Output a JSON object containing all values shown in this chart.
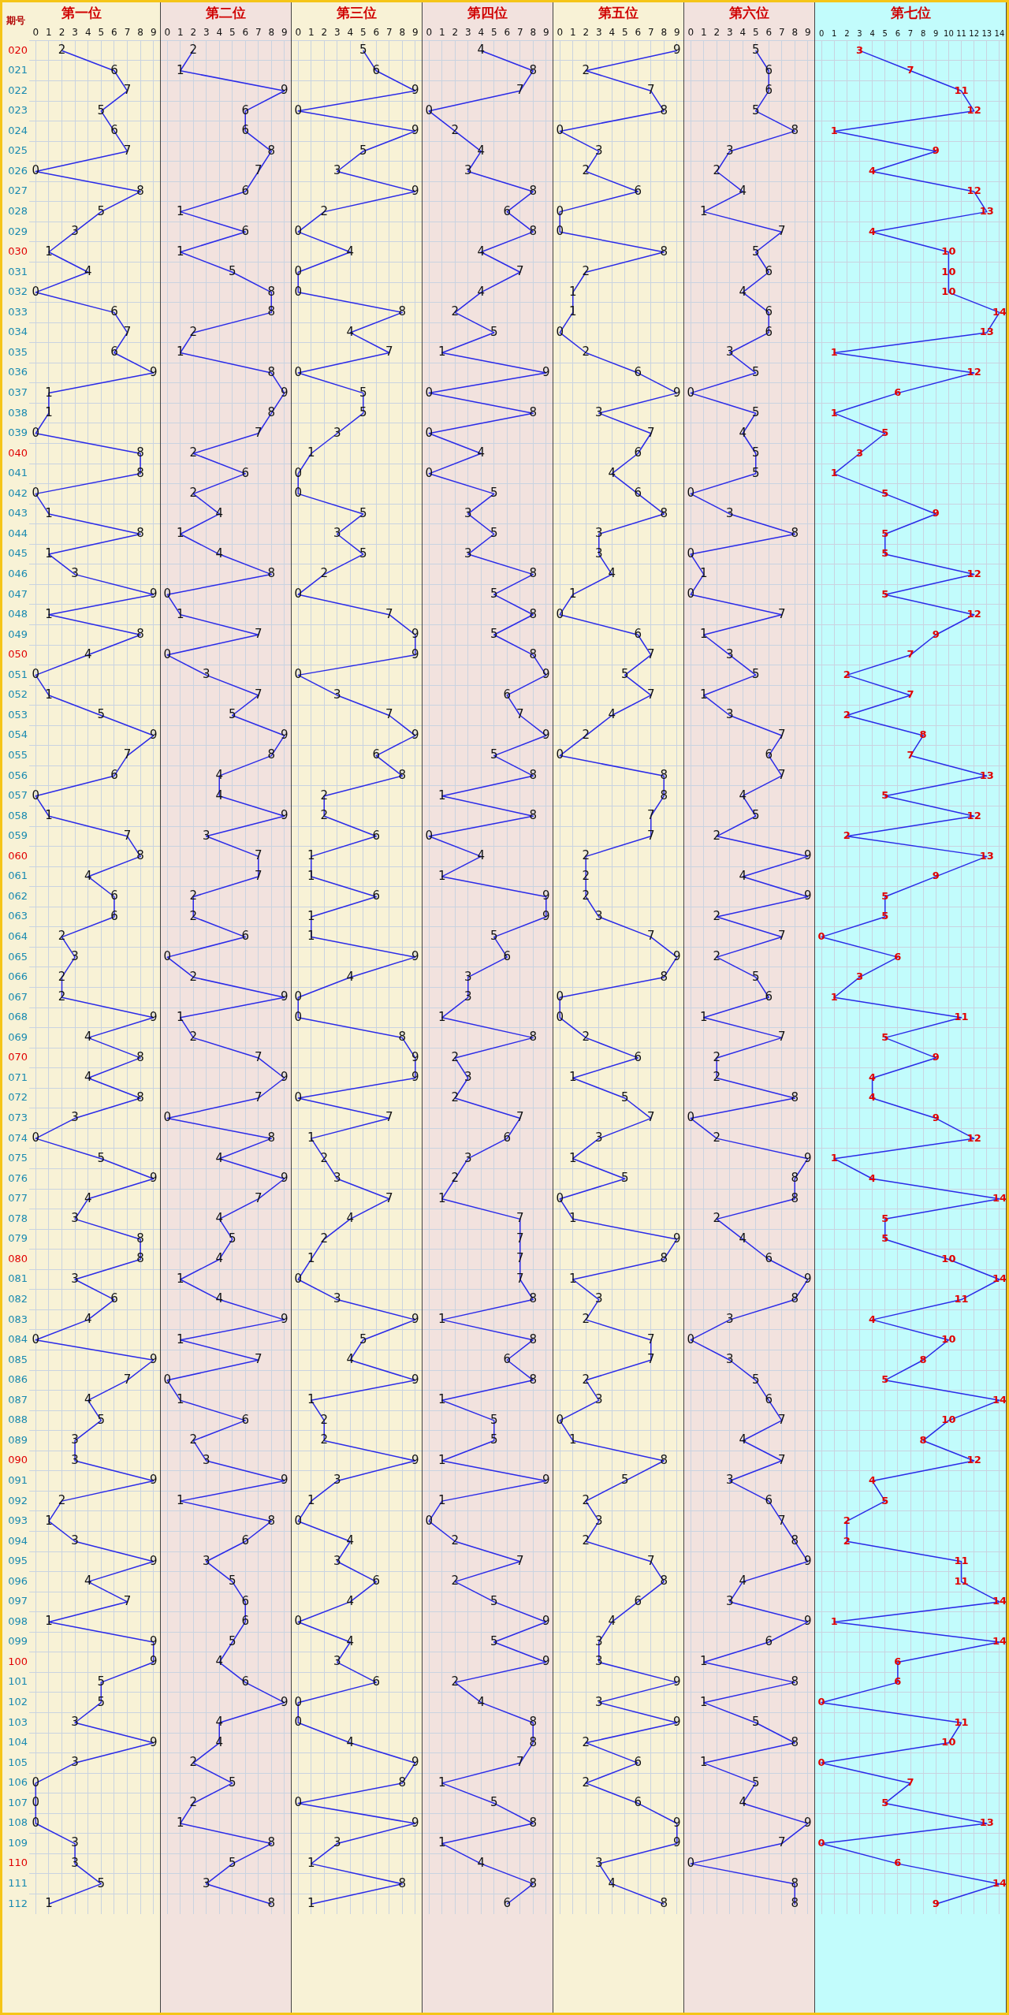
{
  "chart_data": [
    {
      "type": "line",
      "orientation": "horizontal",
      "title": "第一位",
      "ylabel": "期号",
      "categories": [
        "020",
        "021",
        "022",
        "023",
        "024",
        "025",
        "026",
        "027",
        "028",
        "029",
        "030",
        "031",
        "032",
        "033",
        "034",
        "035",
        "036",
        "037",
        "038",
        "039",
        "040",
        "041",
        "042",
        "043",
        "044",
        "045",
        "046",
        "047",
        "048",
        "049",
        "050",
        "051",
        "052",
        "053",
        "054",
        "055",
        "056",
        "057",
        "058",
        "059",
        "060",
        "061",
        "062",
        "063",
        "064",
        "065",
        "066",
        "067",
        "068",
        "069",
        "070",
        "071",
        "072",
        "073",
        "074",
        "075",
        "076",
        "077",
        "078",
        "079",
        "080",
        "081",
        "082",
        "083",
        "084",
        "085",
        "086",
        "087",
        "088",
        "089",
        "090",
        "091",
        "092",
        "093",
        "094",
        "095",
        "096",
        "097",
        "098",
        "099",
        "100",
        "101",
        "102",
        "103",
        "104",
        "105",
        "106",
        "107",
        "108",
        "109",
        "110",
        "111",
        "112"
      ],
      "values": [
        2,
        6,
        7,
        5,
        6,
        7,
        0,
        8,
        5,
        3,
        1,
        4,
        0,
        6,
        7,
        6,
        9,
        1,
        1,
        0,
        8,
        8,
        0,
        1,
        8,
        1,
        3,
        9,
        1,
        8,
        4,
        0,
        1,
        5,
        9,
        7,
        6,
        0,
        1,
        7,
        8,
        4,
        6,
        6,
        2,
        3,
        2,
        2,
        9,
        4,
        8,
        4,
        8,
        3,
        0,
        5,
        9,
        4,
        3,
        8,
        8,
        3,
        6,
        4,
        0,
        9,
        7,
        4,
        5,
        3,
        3,
        9,
        2,
        1,
        3,
        9,
        4,
        7,
        1,
        9,
        9,
        5,
        5,
        3,
        9,
        3,
        0,
        0,
        0,
        3,
        3,
        5,
        1
      ],
      "color": "#2a2ae8",
      "xlim": [
        -0.5,
        9.5
      ],
      "xticks": [
        0,
        1,
        2,
        3,
        4,
        5,
        6,
        7,
        8,
        9
      ],
      "grid": true,
      "data_labels": true,
      "marker": "none",
      "legend": false
    },
    {
      "type": "line",
      "orientation": "horizontal",
      "title": "第二位",
      "categories": [
        "020",
        "021",
        "022",
        "023",
        "024",
        "025",
        "026",
        "027",
        "028",
        "029",
        "030",
        "031",
        "032",
        "033",
        "034",
        "035",
        "036",
        "037",
        "038",
        "039",
        "040",
        "041",
        "042",
        "043",
        "044",
        "045",
        "046",
        "047",
        "048",
        "049",
        "050",
        "051",
        "052",
        "053",
        "054",
        "055",
        "056",
        "057",
        "058",
        "059",
        "060",
        "061",
        "062",
        "063",
        "064",
        "065",
        "066",
        "067",
        "068",
        "069",
        "070",
        "071",
        "072",
        "073",
        "074",
        "075",
        "076",
        "077",
        "078",
        "079",
        "080",
        "081",
        "082",
        "083",
        "084",
        "085",
        "086",
        "087",
        "088",
        "089",
        "090",
        "091",
        "092",
        "093",
        "094",
        "095",
        "096",
        "097",
        "098",
        "099",
        "100",
        "101",
        "102",
        "103",
        "104",
        "105",
        "106",
        "107",
        "108",
        "109",
        "110",
        "111",
        "112"
      ],
      "values": [
        2,
        1,
        9,
        6,
        6,
        8,
        7,
        6,
        1,
        6,
        1,
        5,
        8,
        8,
        2,
        1,
        8,
        9,
        8,
        7,
        2,
        6,
        2,
        4,
        1,
        4,
        8,
        0,
        1,
        7,
        0,
        3,
        7,
        5,
        9,
        8,
        4,
        4,
        9,
        3,
        7,
        7,
        2,
        2,
        6,
        0,
        2,
        9,
        1,
        2,
        7,
        9,
        7,
        0,
        8,
        4,
        9,
        7,
        4,
        5,
        4,
        1,
        4,
        9,
        1,
        7,
        0,
        1,
        6,
        2,
        3,
        9,
        1,
        8,
        6,
        3,
        5,
        6,
        6,
        5,
        4,
        6,
        9,
        4,
        4,
        2,
        5,
        2,
        1,
        8,
        5,
        3,
        8
      ],
      "color": "#2a2ae8",
      "xlim": [
        -0.5,
        9.5
      ],
      "xticks": [
        0,
        1,
        2,
        3,
        4,
        5,
        6,
        7,
        8,
        9
      ],
      "grid": true,
      "data_labels": true,
      "marker": "none",
      "legend": false,
      "tick_labels": "x"
    },
    {
      "type": "line",
      "orientation": "horizontal",
      "title": "第三位",
      "categories": [
        "020",
        "021",
        "022",
        "023",
        "024",
        "025",
        "026",
        "027",
        "028",
        "029",
        "030",
        "031",
        "032",
        "033",
        "034",
        "035",
        "036",
        "037",
        "038",
        "039",
        "040",
        "041",
        "042",
        "043",
        "044",
        "045",
        "046",
        "047",
        "048",
        "049",
        "050",
        "051",
        "052",
        "053",
        "054",
        "055",
        "056",
        "057",
        "058",
        "059",
        "060",
        "061",
        "062",
        "063",
        "064",
        "065",
        "066",
        "067",
        "068",
        "069",
        "070",
        "071",
        "072",
        "073",
        "074",
        "075",
        "076",
        "077",
        "078",
        "079",
        "080",
        "081",
        "082",
        "083",
        "084",
        "085",
        "086",
        "087",
        "088",
        "089",
        "090",
        "091",
        "092",
        "093",
        "094",
        "095",
        "096",
        "097",
        "098",
        "099",
        "100",
        "101",
        "102",
        "103",
        "104",
        "105",
        "106",
        "107",
        "108",
        "109",
        "110",
        "111",
        "112"
      ],
      "values": [
        5,
        6,
        9,
        0,
        9,
        5,
        3,
        9,
        2,
        0,
        4,
        0,
        0,
        8,
        4,
        7,
        0,
        5,
        5,
        3,
        1,
        0,
        0,
        5,
        3,
        5,
        2,
        0,
        7,
        9,
        9,
        0,
        3,
        7,
        9,
        6,
        8,
        2,
        2,
        6,
        1,
        1,
        6,
        1,
        1,
        9,
        4,
        0,
        0,
        8,
        9,
        9,
        0,
        7,
        1,
        2,
        3,
        7,
        4,
        2,
        1,
        0,
        3,
        9,
        5,
        4,
        9,
        1,
        2,
        2,
        9,
        3,
        1,
        0,
        4,
        3,
        6,
        4,
        0,
        4,
        3,
        6,
        0,
        0,
        4,
        9,
        8,
        0,
        9,
        3,
        1,
        8,
        1
      ],
      "color": "#2a2ae8",
      "xlim": [
        -0.5,
        9.5
      ],
      "xticks": [
        0,
        1,
        2,
        3,
        4,
        5,
        6,
        7,
        8,
        9
      ],
      "grid": true,
      "data_labels": true,
      "marker": "none",
      "legend": false,
      "tick_labels": "x"
    },
    {
      "type": "line",
      "orientation": "horizontal",
      "title": "第四位",
      "categories": [
        "020",
        "021",
        "022",
        "023",
        "024",
        "025",
        "026",
        "027",
        "028",
        "029",
        "030",
        "031",
        "032",
        "033",
        "034",
        "035",
        "036",
        "037",
        "038",
        "039",
        "040",
        "041",
        "042",
        "043",
        "044",
        "045",
        "046",
        "047",
        "048",
        "049",
        "050",
        "051",
        "052",
        "053",
        "054",
        "055",
        "056",
        "057",
        "058",
        "059",
        "060",
        "061",
        "062",
        "063",
        "064",
        "065",
        "066",
        "067",
        "068",
        "069",
        "070",
        "071",
        "072",
        "073",
        "074",
        "075",
        "076",
        "077",
        "078",
        "079",
        "080",
        "081",
        "082",
        "083",
        "084",
        "085",
        "086",
        "087",
        "088",
        "089",
        "090",
        "091",
        "092",
        "093",
        "094",
        "095",
        "096",
        "097",
        "098",
        "099",
        "100",
        "101",
        "102",
        "103",
        "104",
        "105",
        "106",
        "107",
        "108",
        "109",
        "110",
        "111",
        "112"
      ],
      "values": [
        4,
        8,
        7,
        0,
        2,
        4,
        3,
        8,
        6,
        8,
        4,
        7,
        4,
        2,
        5,
        1,
        9,
        0,
        8,
        0,
        4,
        0,
        5,
        3,
        5,
        3,
        8,
        5,
        8,
        5,
        8,
        9,
        6,
        7,
        9,
        5,
        8,
        1,
        8,
        0,
        4,
        1,
        9,
        9,
        5,
        6,
        3,
        3,
        1,
        8,
        2,
        3,
        2,
        7,
        6,
        3,
        2,
        1,
        7,
        7,
        7,
        7,
        8,
        1,
        8,
        6,
        8,
        1,
        5,
        5,
        1,
        9,
        1,
        0,
        2,
        7,
        2,
        5,
        9,
        5,
        9,
        2,
        4,
        8,
        8,
        7,
        1,
        5,
        8,
        1,
        4,
        8,
        6
      ],
      "color": "#2a2ae8",
      "xlim": [
        -0.5,
        9.5
      ],
      "xticks": [
        0,
        1,
        2,
        3,
        4,
        5,
        6,
        7,
        8,
        9
      ],
      "grid": true,
      "data_labels": true,
      "marker": "none",
      "legend": false,
      "tick_labels": "x"
    },
    {
      "type": "line",
      "orientation": "horizontal",
      "title": "第五位",
      "categories": [
        "020",
        "021",
        "022",
        "023",
        "024",
        "025",
        "026",
        "027",
        "028",
        "029",
        "030",
        "031",
        "032",
        "033",
        "034",
        "035",
        "036",
        "037",
        "038",
        "039",
        "040",
        "041",
        "042",
        "043",
        "044",
        "045",
        "046",
        "047",
        "048",
        "049",
        "050",
        "051",
        "052",
        "053",
        "054",
        "055",
        "056",
        "057",
        "058",
        "059",
        "060",
        "061",
        "062",
        "063",
        "064",
        "065",
        "066",
        "067",
        "068",
        "069",
        "070",
        "071",
        "072",
        "073",
        "074",
        "075",
        "076",
        "077",
        "078",
        "079",
        "080",
        "081",
        "082",
        "083",
        "084",
        "085",
        "086",
        "087",
        "088",
        "089",
        "090",
        "091",
        "092",
        "093",
        "094",
        "095",
        "096",
        "097",
        "098",
        "099",
        "100",
        "101",
        "102",
        "103",
        "104",
        "105",
        "106",
        "107",
        "108",
        "109",
        "110",
        "111",
        "112"
      ],
      "values": [
        9,
        2,
        7,
        8,
        0,
        3,
        2,
        6,
        0,
        0,
        8,
        2,
        1,
        1,
        0,
        2,
        6,
        9,
        3,
        7,
        6,
        4,
        6,
        8,
        3,
        3,
        4,
        1,
        0,
        6,
        7,
        5,
        7,
        4,
        2,
        0,
        8,
        8,
        7,
        7,
        2,
        2,
        2,
        3,
        7,
        9,
        8,
        0,
        0,
        2,
        6,
        1,
        5,
        7,
        3,
        1,
        5,
        0,
        1,
        9,
        8,
        1,
        3,
        2,
        7,
        7,
        2,
        3,
        0,
        1,
        8,
        5,
        2,
        3,
        2,
        7,
        8,
        6,
        4,
        3,
        3,
        9,
        3,
        9,
        2,
        6,
        2,
        6,
        9,
        9,
        3,
        4,
        8
      ],
      "color": "#2a2ae8",
      "xlim": [
        -0.5,
        9.5
      ],
      "xticks": [
        0,
        1,
        2,
        3,
        4,
        5,
        6,
        7,
        8,
        9
      ],
      "grid": true,
      "data_labels": true,
      "marker": "none",
      "legend": false,
      "tick_labels": "x"
    },
    {
      "type": "line",
      "orientation": "horizontal",
      "title": "第六位",
      "categories": [
        "020",
        "021",
        "022",
        "023",
        "024",
        "025",
        "026",
        "027",
        "028",
        "029",
        "030",
        "031",
        "032",
        "033",
        "034",
        "035",
        "036",
        "037",
        "038",
        "039",
        "040",
        "041",
        "042",
        "043",
        "044",
        "045",
        "046",
        "047",
        "048",
        "049",
        "050",
        "051",
        "052",
        "053",
        "054",
        "055",
        "056",
        "057",
        "058",
        "059",
        "060",
        "061",
        "062",
        "063",
        "064",
        "065",
        "066",
        "067",
        "068",
        "069",
        "070",
        "071",
        "072",
        "073",
        "074",
        "075",
        "076",
        "077",
        "078",
        "079",
        "080",
        "081",
        "082",
        "083",
        "084",
        "085",
        "086",
        "087",
        "088",
        "089",
        "090",
        "091",
        "092",
        "093",
        "094",
        "095",
        "096",
        "097",
        "098",
        "099",
        "100",
        "101",
        "102",
        "103",
        "104",
        "105",
        "106",
        "107",
        "108",
        "109",
        "110",
        "111",
        "112"
      ],
      "values": [
        5,
        6,
        6,
        5,
        8,
        3,
        2,
        4,
        1,
        7,
        5,
        6,
        4,
        6,
        6,
        3,
        5,
        0,
        5,
        4,
        5,
        5,
        0,
        3,
        8,
        0,
        1,
        0,
        7,
        1,
        3,
        5,
        1,
        3,
        7,
        6,
        7,
        4,
        5,
        2,
        9,
        4,
        9,
        2,
        7,
        2,
        5,
        6,
        1,
        7,
        2,
        2,
        8,
        0,
        2,
        9,
        8,
        8,
        2,
        4,
        6,
        9,
        8,
        3,
        0,
        3,
        5,
        6,
        7,
        4,
        7,
        3,
        6,
        7,
        8,
        9,
        4,
        3,
        9,
        6,
        1,
        8,
        1,
        5,
        8,
        1,
        5,
        4,
        9,
        7,
        0,
        8,
        8
      ],
      "color": "#2a2ae8",
      "xlim": [
        -0.5,
        9.5
      ],
      "xticks": [
        0,
        1,
        2,
        3,
        4,
        5,
        6,
        7,
        8,
        9
      ],
      "grid": true,
      "data_labels": true,
      "marker": "none",
      "legend": false,
      "tick_labels": "x"
    },
    {
      "type": "line",
      "orientation": "horizontal",
      "title": "第七位",
      "categories": [
        "020",
        "021",
        "022",
        "023",
        "024",
        "025",
        "026",
        "027",
        "028",
        "029",
        "030",
        "031",
        "032",
        "033",
        "034",
        "035",
        "036",
        "037",
        "038",
        "039",
        "040",
        "041",
        "042",
        "043",
        "044",
        "045",
        "046",
        "047",
        "048",
        "049",
        "050",
        "051",
        "052",
        "053",
        "054",
        "055",
        "056",
        "057",
        "058",
        "059",
        "060",
        "061",
        "062",
        "063",
        "064",
        "065",
        "066",
        "067",
        "068",
        "069",
        "070",
        "071",
        "072",
        "073",
        "074",
        "075",
        "076",
        "077",
        "078",
        "079",
        "080",
        "081",
        "082",
        "083",
        "084",
        "085",
        "086",
        "087",
        "088",
        "089",
        "090",
        "091",
        "092",
        "093",
        "094",
        "095",
        "096",
        "097",
        "098",
        "099",
        "100",
        "101",
        "102",
        "103",
        "104",
        "105",
        "106",
        "107",
        "108",
        "109",
        "110",
        "111",
        "112"
      ],
      "values": [
        3,
        7,
        11,
        12,
        1,
        9,
        4,
        12,
        13,
        4,
        10,
        10,
        10,
        14,
        13,
        1,
        12,
        6,
        1,
        5,
        3,
        1,
        5,
        9,
        5,
        5,
        12,
        5,
        12,
        9,
        7,
        2,
        7,
        2,
        8,
        7,
        13,
        5,
        12,
        2,
        13,
        9,
        5,
        5,
        0,
        6,
        3,
        1,
        11,
        5,
        9,
        4,
        4,
        9,
        12,
        1,
        4,
        14,
        5,
        5,
        10,
        14,
        11,
        4,
        10,
        8,
        5,
        14,
        10,
        8,
        12,
        4,
        5,
        2,
        2,
        11,
        11,
        14,
        1,
        14,
        6,
        6,
        0,
        11,
        10,
        0,
        7,
        5,
        13,
        0,
        6,
        14,
        9
      ],
      "color": "#2a2ae8",
      "xlim": [
        -0.5,
        14.5
      ],
      "xticks": [
        0,
        1,
        2,
        3,
        4,
        5,
        6,
        7,
        8,
        9,
        10,
        11,
        12,
        13,
        14
      ],
      "grid": true,
      "data_labels": true,
      "marker": "none",
      "legend": false,
      "tick_labels": "x"
    }
  ]
}
